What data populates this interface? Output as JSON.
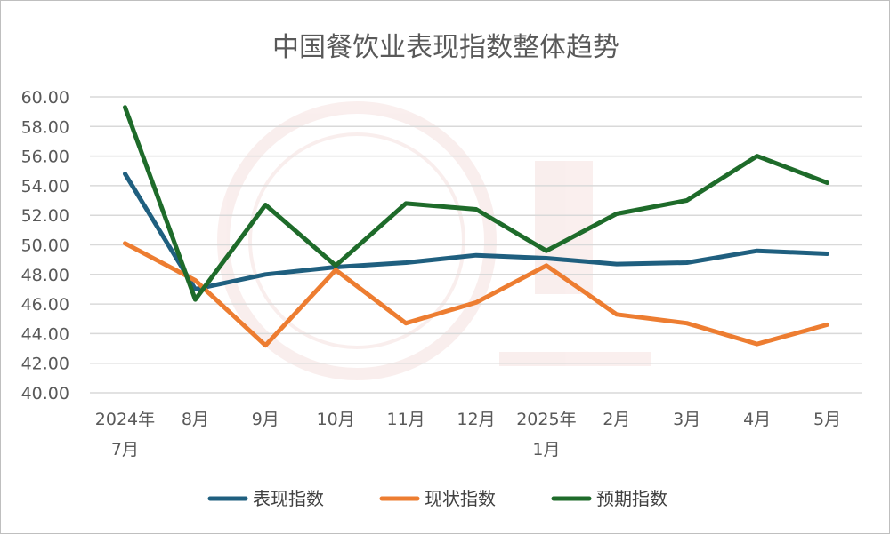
{
  "chart_data": {
    "type": "line",
    "title": "中国餐饮业表现指数整体趋势",
    "xlabel": "",
    "ylabel": "",
    "ylim": [
      40,
      60
    ],
    "ytick_labels": [
      "40.00",
      "42.00",
      "44.00",
      "46.00",
      "48.00",
      "50.00",
      "52.00",
      "54.00",
      "56.00",
      "58.00",
      "60.00"
    ],
    "grid": true,
    "legend_position": "bottom",
    "categories": [
      {
        "line1": "2024年",
        "line2": "7月"
      },
      {
        "line1": "8月",
        "line2": ""
      },
      {
        "line1": "9月",
        "line2": ""
      },
      {
        "line1": "10月",
        "line2": ""
      },
      {
        "line1": "11月",
        "line2": ""
      },
      {
        "line1": "12月",
        "line2": ""
      },
      {
        "line1": "2025年",
        "line2": "1月"
      },
      {
        "line1": "2月",
        "line2": ""
      },
      {
        "line1": "3月",
        "line2": ""
      },
      {
        "line1": "4月",
        "line2": ""
      },
      {
        "line1": "5月",
        "line2": ""
      }
    ],
    "series": [
      {
        "name": "表现指数",
        "color": "#1f5f7f",
        "values": [
          54.8,
          47.0,
          48.0,
          48.5,
          48.8,
          49.3,
          49.1,
          48.7,
          48.8,
          49.6,
          49.4
        ]
      },
      {
        "name": "现状指数",
        "color": "#ed7d31",
        "values": [
          50.1,
          47.6,
          43.2,
          48.3,
          44.7,
          46.1,
          48.6,
          45.3,
          44.7,
          43.3,
          44.6
        ]
      },
      {
        "name": "预期指数",
        "color": "#1e6b2a",
        "values": [
          59.3,
          46.3,
          52.7,
          48.6,
          52.8,
          52.4,
          49.6,
          52.1,
          53.0,
          56.0,
          54.2
        ]
      }
    ]
  }
}
